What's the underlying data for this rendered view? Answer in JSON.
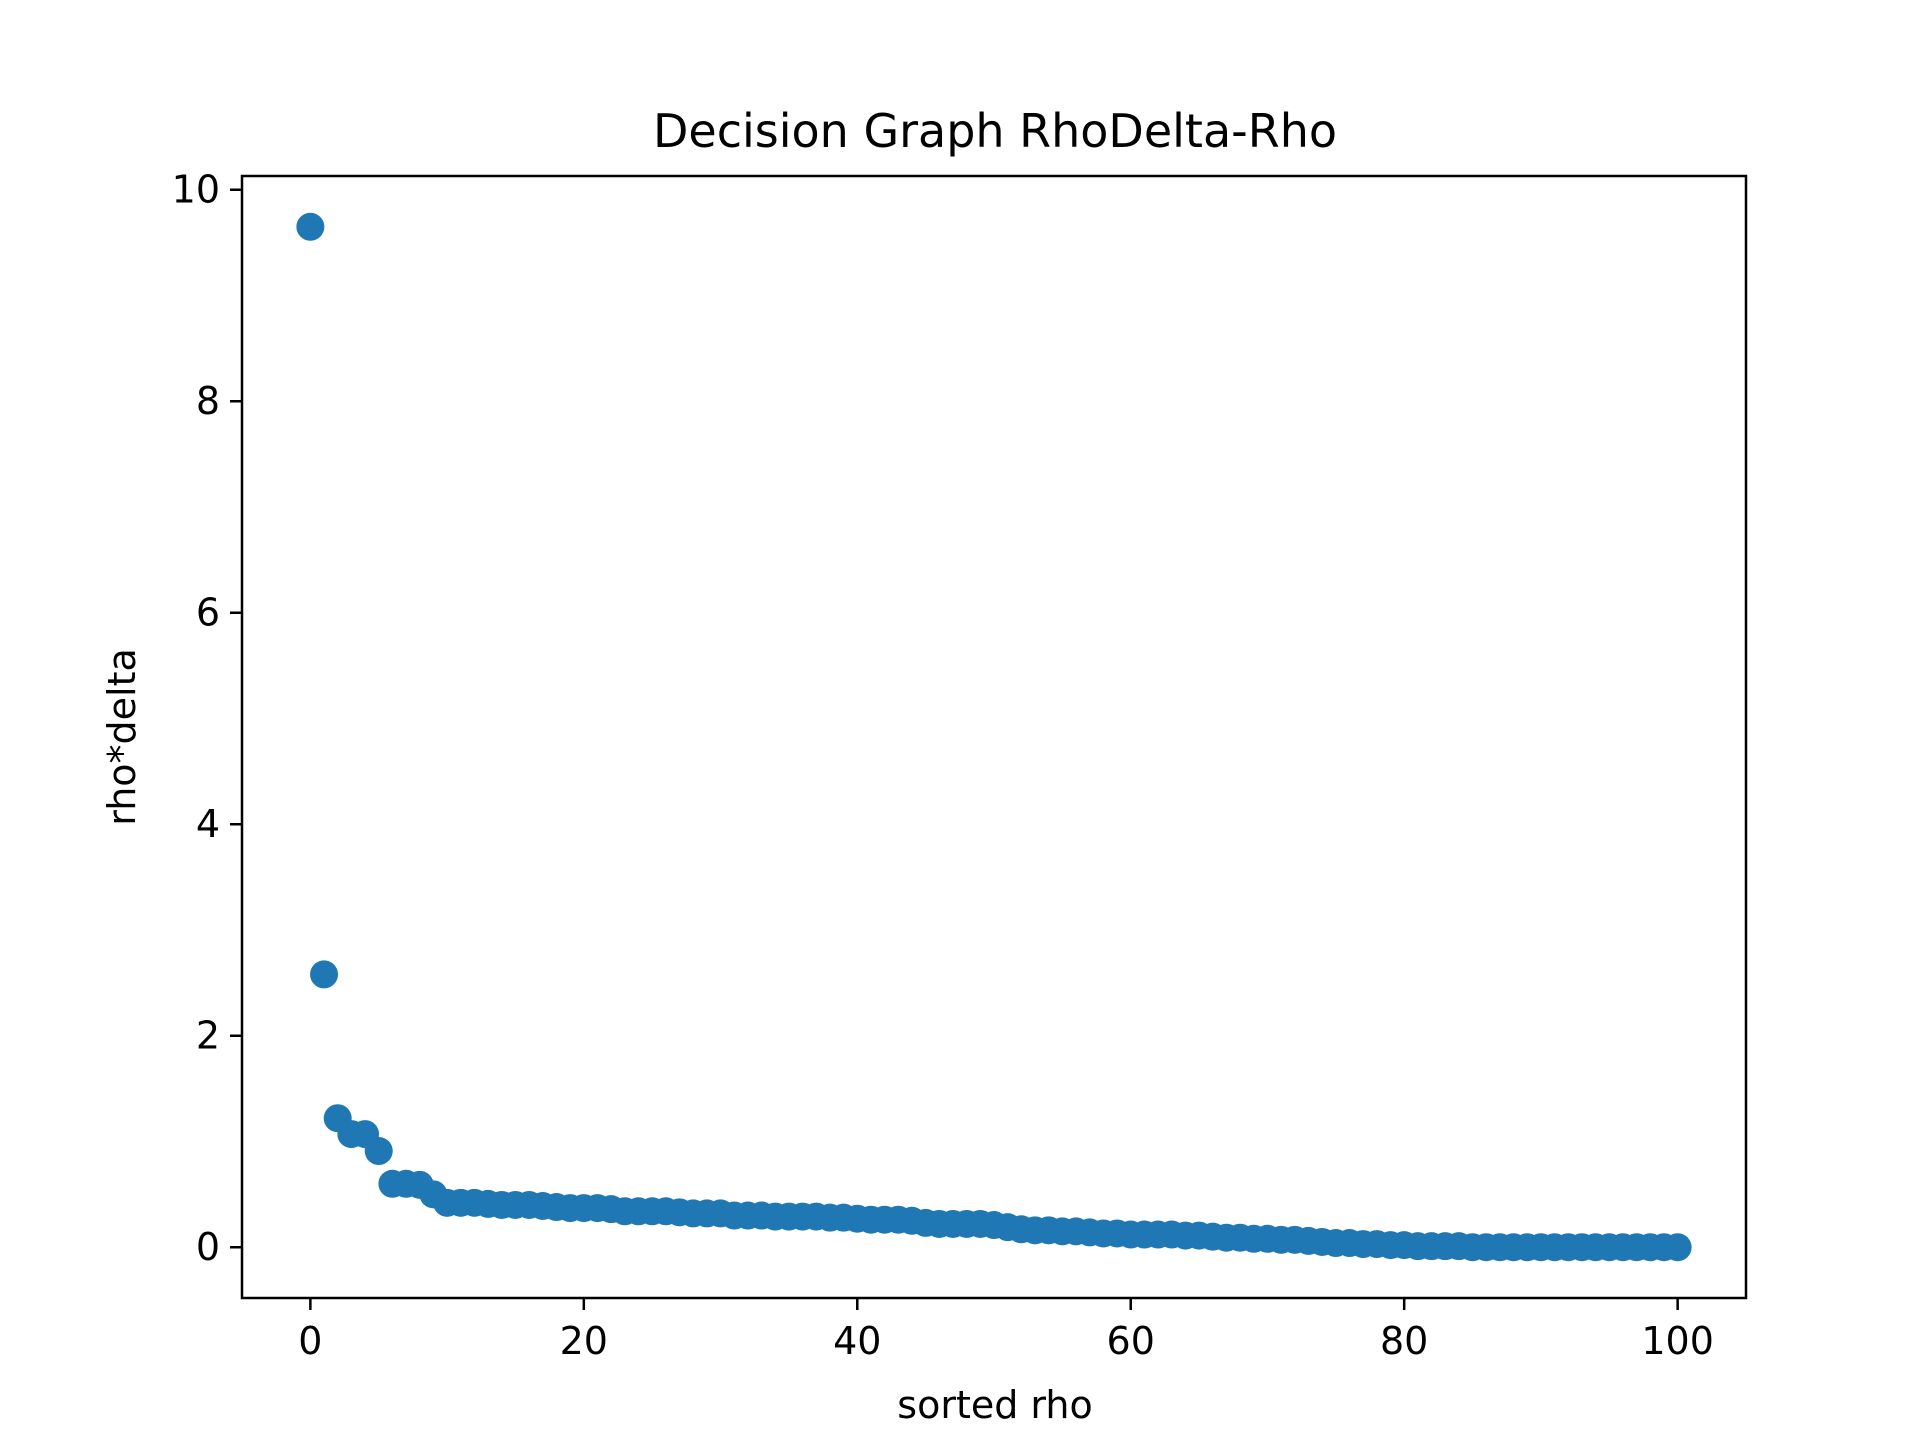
{
  "chart_data": {
    "type": "scatter",
    "title": "Decision Graph RhoDelta-Rho",
    "xlabel": "sorted rho",
    "ylabel": "rho*delta",
    "xlim": [
      -5,
      105
    ],
    "ylim": [
      -0.48,
      10.13
    ],
    "xticks": [
      0,
      20,
      40,
      60,
      80,
      100
    ],
    "yticks": [
      0,
      2,
      4,
      6,
      8,
      10
    ],
    "grid": false,
    "legend": "none",
    "marker_color": "#1f77b4",
    "x": [
      0,
      1,
      2,
      3,
      4,
      5,
      6,
      7,
      8,
      9,
      10,
      11,
      12,
      13,
      14,
      15,
      16,
      17,
      18,
      19,
      20,
      21,
      22,
      23,
      24,
      25,
      26,
      27,
      28,
      29,
      30,
      31,
      32,
      33,
      34,
      35,
      36,
      37,
      38,
      39,
      40,
      41,
      42,
      43,
      44,
      45,
      46,
      47,
      48,
      49,
      50,
      51,
      52,
      53,
      54,
      55,
      56,
      57,
      58,
      59,
      60,
      61,
      62,
      63,
      64,
      65,
      66,
      67,
      68,
      69,
      70,
      71,
      72,
      73,
      74,
      75,
      76,
      77,
      78,
      79,
      80,
      81,
      82,
      83,
      84,
      85,
      86,
      87,
      88,
      89,
      90,
      91,
      92,
      93,
      94,
      95,
      96,
      97,
      98,
      99,
      100
    ],
    "y": [
      9.65,
      2.58,
      1.22,
      1.07,
      1.07,
      0.91,
      0.6,
      0.6,
      0.59,
      0.5,
      0.42,
      0.42,
      0.42,
      0.41,
      0.4,
      0.4,
      0.4,
      0.39,
      0.38,
      0.37,
      0.37,
      0.37,
      0.36,
      0.34,
      0.34,
      0.34,
      0.34,
      0.33,
      0.32,
      0.32,
      0.32,
      0.3,
      0.3,
      0.3,
      0.29,
      0.29,
      0.29,
      0.29,
      0.28,
      0.28,
      0.27,
      0.26,
      0.26,
      0.26,
      0.25,
      0.23,
      0.22,
      0.22,
      0.22,
      0.22,
      0.21,
      0.19,
      0.17,
      0.16,
      0.16,
      0.15,
      0.15,
      0.14,
      0.13,
      0.13,
      0.12,
      0.12,
      0.12,
      0.12,
      0.11,
      0.11,
      0.1,
      0.09,
      0.09,
      0.08,
      0.08,
      0.07,
      0.07,
      0.06,
      0.05,
      0.04,
      0.04,
      0.03,
      0.03,
      0.02,
      0.02,
      0.01,
      0.01,
      0.01,
      0.01,
      0.0,
      0.0,
      0.0,
      0.0,
      0.0,
      0.0,
      0.0,
      0.0,
      0.0,
      0.0,
      0.0,
      0.0,
      0.0,
      0.0,
      0.0,
      0.0
    ]
  }
}
